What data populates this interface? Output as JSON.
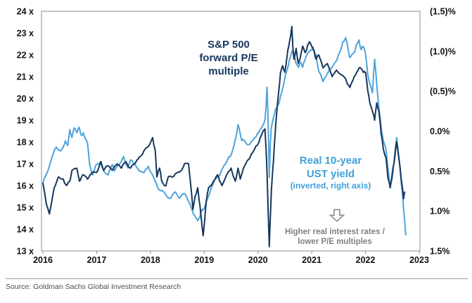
{
  "annotations": {
    "pe_label": {
      "line1": "S&P 500",
      "line2": "forward P/E",
      "line3": "multiple"
    },
    "yield_label": {
      "line1": "Real 10-year",
      "line2": "UST yield",
      "line3": "(inverted, right axis)"
    },
    "note": {
      "line1": "Higher real interest rates /",
      "line2": "lower P/E multiples"
    },
    "arrow_icon": "down-block-arrow"
  },
  "footer": {
    "source": "Source: Goldman Sachs Global Investment Research"
  },
  "colors": {
    "pe_line": "#16365C",
    "yield_line": "#4DA3DC",
    "pe_text": "#17375E",
    "yield_text": "#3F9FDC",
    "note_text": "#808080",
    "axis": "#8C8C8C",
    "tick_text": "#121212"
  },
  "chart_data": {
    "type": "line",
    "title": "",
    "grid": false,
    "legend_position": "in-plot text annotations",
    "x_axis": {
      "min": 2016,
      "max": 2023,
      "ticks": [
        2016,
        2017,
        2018,
        2019,
        2020,
        2021,
        2022,
        2023
      ],
      "labels": [
        "2016",
        "2017",
        "2018",
        "2019",
        "2020",
        "2021",
        "2022",
        "2023"
      ]
    },
    "left_axis": {
      "title": "S&P 500 forward P/E multiple",
      "min": 13,
      "max": 24,
      "values": [
        24,
        23,
        22,
        21,
        20,
        19,
        18,
        17,
        16,
        15,
        14,
        13
      ],
      "labels": [
        "24 x",
        "23 x",
        "22 x",
        "21 x",
        "20 x",
        "19 x",
        "18 x",
        "17 x",
        "16 x",
        "15 x",
        "14 x",
        "13 x"
      ]
    },
    "right_axis": {
      "title": "Real 10-year UST yield (inverted)",
      "inverted": true,
      "min": -1.5,
      "max": 1.5,
      "values": [
        -1.5,
        -1.0,
        -0.5,
        0.0,
        0.5,
        1.0,
        1.5
      ],
      "labels": [
        "(1.5)%",
        "(1.0)%",
        "(0.5)%",
        "0.0%",
        "0.5%",
        "1.0%",
        "1.5%"
      ]
    },
    "series": [
      {
        "name": "Real 10-year UST yield (inverted, right axis)",
        "axis": "right",
        "color": "#4DA3DC",
        "points": [
          [
            2016.0,
            0.65
          ],
          [
            2016.08,
            0.52
          ],
          [
            2016.17,
            0.32
          ],
          [
            2016.25,
            0.2
          ],
          [
            2016.33,
            0.25
          ],
          [
            2016.42,
            0.12
          ],
          [
            2016.46,
            0.18
          ],
          [
            2016.5,
            -0.02
          ],
          [
            2016.54,
            0.08
          ],
          [
            2016.58,
            -0.04
          ],
          [
            2016.63,
            0.02
          ],
          [
            2016.67,
            -0.05
          ],
          [
            2016.71,
            0.05
          ],
          [
            2016.75,
            0.02
          ],
          [
            2016.79,
            0.1
          ],
          [
            2016.83,
            0.15
          ],
          [
            2016.87,
            0.42
          ],
          [
            2016.92,
            0.55
          ],
          [
            2016.96,
            0.48
          ],
          [
            2017.0,
            0.42
          ],
          [
            2017.08,
            0.38
          ],
          [
            2017.13,
            0.5
          ],
          [
            2017.21,
            0.55
          ],
          [
            2017.29,
            0.42
          ],
          [
            2017.33,
            0.5
          ],
          [
            2017.42,
            0.42
          ],
          [
            2017.5,
            0.32
          ],
          [
            2017.58,
            0.46
          ],
          [
            2017.63,
            0.36
          ],
          [
            2017.71,
            0.42
          ],
          [
            2017.79,
            0.5
          ],
          [
            2017.88,
            0.52
          ],
          [
            2017.96,
            0.44
          ],
          [
            2018.04,
            0.55
          ],
          [
            2018.08,
            0.62
          ],
          [
            2018.13,
            0.7
          ],
          [
            2018.21,
            0.74
          ],
          [
            2018.29,
            0.8
          ],
          [
            2018.38,
            0.84
          ],
          [
            2018.46,
            0.76
          ],
          [
            2018.54,
            0.84
          ],
          [
            2018.63,
            0.78
          ],
          [
            2018.71,
            0.88
          ],
          [
            2018.79,
            1.02
          ],
          [
            2018.88,
            1.12
          ],
          [
            2018.92,
            1.08
          ],
          [
            2018.96,
            0.98
          ],
          [
            2019.0,
            0.97
          ],
          [
            2019.08,
            0.82
          ],
          [
            2019.17,
            0.65
          ],
          [
            2019.21,
            0.6
          ],
          [
            2019.29,
            0.55
          ],
          [
            2019.38,
            0.42
          ],
          [
            2019.46,
            0.32
          ],
          [
            2019.5,
            0.3
          ],
          [
            2019.58,
            0.1
          ],
          [
            2019.63,
            -0.08
          ],
          [
            2019.7,
            0.12
          ],
          [
            2019.75,
            0.12
          ],
          [
            2019.83,
            0.17
          ],
          [
            2019.92,
            0.1
          ],
          [
            2020.0,
            0.02
          ],
          [
            2020.04,
            -0.02
          ],
          [
            2020.08,
            -0.06
          ],
          [
            2020.13,
            -0.15
          ],
          [
            2020.15,
            -0.3
          ],
          [
            2020.17,
            -0.55
          ],
          [
            2020.19,
            -0.1
          ],
          [
            2020.21,
            0.58
          ],
          [
            2020.23,
            0.15
          ],
          [
            2020.25,
            -0.05
          ],
          [
            2020.29,
            -0.17
          ],
          [
            2020.33,
            -0.28
          ],
          [
            2020.38,
            -0.33
          ],
          [
            2020.42,
            -0.44
          ],
          [
            2020.46,
            -0.54
          ],
          [
            2020.5,
            -0.66
          ],
          [
            2020.54,
            -0.76
          ],
          [
            2020.58,
            -0.88
          ],
          [
            2020.63,
            -1.0
          ],
          [
            2020.67,
            -0.94
          ],
          [
            2020.71,
            -0.84
          ],
          [
            2020.75,
            -0.8
          ],
          [
            2020.79,
            -0.86
          ],
          [
            2020.83,
            -0.8
          ],
          [
            2020.88,
            -0.9
          ],
          [
            2020.92,
            -0.96
          ],
          [
            2020.96,
            -1.0
          ],
          [
            2021.04,
            -1.02
          ],
          [
            2021.08,
            -0.95
          ],
          [
            2021.13,
            -0.75
          ],
          [
            2021.21,
            -0.62
          ],
          [
            2021.29,
            -0.72
          ],
          [
            2021.38,
            -0.8
          ],
          [
            2021.46,
            -0.88
          ],
          [
            2021.54,
            -1.02
          ],
          [
            2021.58,
            -1.12
          ],
          [
            2021.63,
            -1.17
          ],
          [
            2021.67,
            -1.05
          ],
          [
            2021.71,
            -0.92
          ],
          [
            2021.79,
            -0.98
          ],
          [
            2021.83,
            -1.08
          ],
          [
            2021.88,
            -1.14
          ],
          [
            2021.92,
            -1.02
          ],
          [
            2021.96,
            -1.06
          ],
          [
            2022.0,
            -0.97
          ],
          [
            2022.04,
            -0.72
          ],
          [
            2022.08,
            -0.6
          ],
          [
            2022.13,
            -0.48
          ],
          [
            2022.15,
            -0.72
          ],
          [
            2022.17,
            -0.9
          ],
          [
            2022.21,
            -0.58
          ],
          [
            2022.25,
            -0.28
          ],
          [
            2022.29,
            -0.06
          ],
          [
            2022.33,
            0.12
          ],
          [
            2022.38,
            0.22
          ],
          [
            2022.42,
            0.48
          ],
          [
            2022.46,
            0.68
          ],
          [
            2022.5,
            0.58
          ],
          [
            2022.54,
            0.32
          ],
          [
            2022.58,
            0.08
          ],
          [
            2022.63,
            0.38
          ],
          [
            2022.67,
            0.68
          ],
          [
            2022.71,
            0.98
          ],
          [
            2022.75,
            1.3
          ]
        ]
      },
      {
        "name": "S&P 500 forward P/E multiple",
        "axis": "left",
        "color": "#16365C",
        "points": [
          [
            2016.0,
            16.1
          ],
          [
            2016.06,
            15.2
          ],
          [
            2016.12,
            14.7
          ],
          [
            2016.21,
            15.9
          ],
          [
            2016.29,
            16.4
          ],
          [
            2016.38,
            16.3
          ],
          [
            2016.44,
            16.0
          ],
          [
            2016.5,
            16.2
          ],
          [
            2016.54,
            16.7
          ],
          [
            2016.63,
            16.8
          ],
          [
            2016.68,
            16.2
          ],
          [
            2016.75,
            16.5
          ],
          [
            2016.83,
            16.3
          ],
          [
            2016.92,
            16.6
          ],
          [
            2017.0,
            16.6
          ],
          [
            2017.08,
            17.1
          ],
          [
            2017.13,
            16.7
          ],
          [
            2017.21,
            16.9
          ],
          [
            2017.29,
            16.7
          ],
          [
            2017.38,
            17.0
          ],
          [
            2017.46,
            16.8
          ],
          [
            2017.54,
            17.1
          ],
          [
            2017.63,
            16.8
          ],
          [
            2017.71,
            17.0
          ],
          [
            2017.79,
            17.3
          ],
          [
            2017.88,
            17.6
          ],
          [
            2017.96,
            17.8
          ],
          [
            2018.04,
            18.2
          ],
          [
            2018.09,
            17.6
          ],
          [
            2018.12,
            16.4
          ],
          [
            2018.17,
            16.8
          ],
          [
            2018.21,
            16.2
          ],
          [
            2018.29,
            16.0
          ],
          [
            2018.33,
            16.4
          ],
          [
            2018.42,
            16.4
          ],
          [
            2018.5,
            16.6
          ],
          [
            2018.58,
            16.7
          ],
          [
            2018.63,
            17.0
          ],
          [
            2018.71,
            17.0
          ],
          [
            2018.75,
            16.0
          ],
          [
            2018.79,
            14.9
          ],
          [
            2018.83,
            15.5
          ],
          [
            2018.88,
            15.9
          ],
          [
            2018.92,
            15.1
          ],
          [
            2018.98,
            13.7
          ],
          [
            2019.04,
            15.3
          ],
          [
            2019.08,
            15.9
          ],
          [
            2019.17,
            16.2
          ],
          [
            2019.25,
            16.5
          ],
          [
            2019.33,
            16.0
          ],
          [
            2019.42,
            16.5
          ],
          [
            2019.5,
            16.8
          ],
          [
            2019.58,
            16.2
          ],
          [
            2019.63,
            16.8
          ],
          [
            2019.67,
            16.3
          ],
          [
            2019.75,
            16.9
          ],
          [
            2019.83,
            17.2
          ],
          [
            2019.92,
            17.6
          ],
          [
            2020.0,
            17.9
          ],
          [
            2020.04,
            18.2
          ],
          [
            2020.08,
            18.4
          ],
          [
            2020.13,
            18.6
          ],
          [
            2020.16,
            17.2
          ],
          [
            2020.19,
            14.8
          ],
          [
            2020.21,
            13.2
          ],
          [
            2020.25,
            15.8
          ],
          [
            2020.29,
            17.2
          ],
          [
            2020.33,
            18.8
          ],
          [
            2020.38,
            20.2
          ],
          [
            2020.42,
            21.2
          ],
          [
            2020.46,
            21.5
          ],
          [
            2020.5,
            21.2
          ],
          [
            2020.54,
            21.9
          ],
          [
            2020.58,
            22.5
          ],
          [
            2020.63,
            23.3
          ],
          [
            2020.65,
            22.3
          ],
          [
            2020.67,
            21.8
          ],
          [
            2020.71,
            22.3
          ],
          [
            2020.75,
            21.6
          ],
          [
            2020.79,
            21.9
          ],
          [
            2020.83,
            22.4
          ],
          [
            2020.88,
            22.1
          ],
          [
            2020.92,
            22.4
          ],
          [
            2020.96,
            22.6
          ],
          [
            2021.0,
            22.4
          ],
          [
            2021.04,
            22.2
          ],
          [
            2021.08,
            21.8
          ],
          [
            2021.13,
            22.0
          ],
          [
            2021.21,
            21.4
          ],
          [
            2021.29,
            21.6
          ],
          [
            2021.38,
            21.0
          ],
          [
            2021.46,
            21.3
          ],
          [
            2021.54,
            21.1
          ],
          [
            2021.63,
            20.9
          ],
          [
            2021.71,
            20.5
          ],
          [
            2021.79,
            21.0
          ],
          [
            2021.88,
            21.4
          ],
          [
            2021.96,
            21.2
          ],
          [
            2022.0,
            21.2
          ],
          [
            2022.04,
            20.4
          ],
          [
            2022.08,
            19.8
          ],
          [
            2022.13,
            19.4
          ],
          [
            2022.17,
            19.0
          ],
          [
            2022.21,
            19.8
          ],
          [
            2022.25,
            19.4
          ],
          [
            2022.29,
            18.4
          ],
          [
            2022.33,
            17.7
          ],
          [
            2022.38,
            17.3
          ],
          [
            2022.42,
            16.3
          ],
          [
            2022.46,
            15.9
          ],
          [
            2022.5,
            16.6
          ],
          [
            2022.54,
            17.2
          ],
          [
            2022.58,
            18.0
          ],
          [
            2022.63,
            17.1
          ],
          [
            2022.67,
            16.2
          ],
          [
            2022.71,
            15.4
          ],
          [
            2022.73,
            15.7
          ]
        ]
      }
    ]
  }
}
